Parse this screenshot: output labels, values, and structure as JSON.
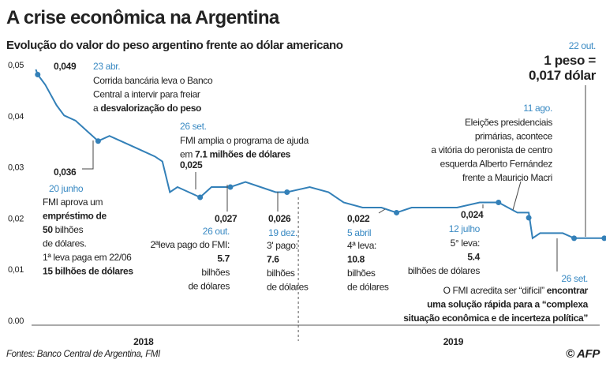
{
  "chart_data": {
    "type": "line",
    "title": "A crise econômica na Argentina",
    "subtitle": "Evolução do valor do peso argentino frente ao dólar americano",
    "source": "Fontes: Banco Central de Argentina, FMI",
    "credit": "© AFP",
    "color": "#3380b8",
    "x": [
      2018.305,
      2018.31,
      2018.33,
      2018.36,
      2018.38,
      2018.41,
      2018.44,
      2018.47,
      2018.5,
      2018.53,
      2018.56,
      2018.59,
      2018.62,
      2018.64,
      2018.66,
      2018.68,
      2018.71,
      2018.74,
      2018.77,
      2018.8,
      2018.82,
      2018.86,
      2018.9,
      2018.94,
      2018.97,
      2019.03,
      2019.08,
      2019.12,
      2019.17,
      2019.22,
      2019.26,
      2019.3,
      2019.35,
      2019.42,
      2019.48,
      2019.53,
      2019.58,
      2019.61,
      2019.62,
      2019.64,
      2019.7,
      2019.73,
      2019.78,
      2019.81
    ],
    "values": [
      0.05,
      0.049,
      0.047,
      0.043,
      0.041,
      0.04,
      0.038,
      0.036,
      0.037,
      0.036,
      0.035,
      0.034,
      0.033,
      0.032,
      0.026,
      0.027,
      0.026,
      0.025,
      0.027,
      0.027,
      0.027,
      0.028,
      0.027,
      0.026,
      0.026,
      0.027,
      0.026,
      0.024,
      0.023,
      0.023,
      0.022,
      0.023,
      0.023,
      0.023,
      0.024,
      0.024,
      0.022,
      0.022,
      0.017,
      0.018,
      0.018,
      0.017,
      0.017,
      0.017
    ],
    "xlim": [
      2018.3,
      2019.85
    ],
    "xticks": [
      {
        "value": 2018.59,
        "label": "2018"
      },
      {
        "value": 2019.41,
        "label": "2019"
      }
    ],
    "dividers": [
      2019
    ],
    "ylim": [
      0,
      0.05
    ],
    "yticks": [
      {
        "value": 0,
        "label": "0.00"
      },
      {
        "value": 0.01,
        "label": "0,01"
      },
      {
        "value": 0.02,
        "label": "0,02"
      },
      {
        "value": 0.03,
        "label": "0,03"
      },
      {
        "value": 0.04,
        "label": "0,04"
      },
      {
        "value": 0.05,
        "label": "0,05"
      }
    ],
    "grid": false,
    "annotations": [
      {
        "date": "23 abr.",
        "x": 2018.31,
        "y": 0.049,
        "value_label": "0,049",
        "lines": [
          "Corrida bancária leva o Banco",
          "Central a intervir para freiar",
          [
            "a ",
            {
              "bold": "desvalorização do peso"
            }
          ]
        ]
      },
      {
        "date": "20 junho",
        "x": 2018.47,
        "y": 0.036,
        "value_label": "0,036",
        "lines": [
          "FMI aprova um",
          [
            {
              "bold": "empréstimo de"
            }
          ],
          [
            {
              "bold": "50"
            },
            " bilhões"
          ],
          "de dólares.",
          "1ª leva paga em 22/06",
          [
            {
              "bold": "15 bilhões de dólares"
            }
          ]
        ]
      },
      {
        "date": "26 set.",
        "x": 2018.74,
        "y": 0.025,
        "value_label": "0,025",
        "lines": [
          "FMI amplia o programa de ajuda",
          [
            "em ",
            {
              "bold": "7.1 milhões de dólares"
            }
          ]
        ]
      },
      {
        "date": "26 out.",
        "x": 2018.82,
        "y": 0.027,
        "value_label": "0,027",
        "lines": [
          "2ªleva pago do FMI:",
          [
            {
              "bold": "5.7"
            }
          ],
          "bilhões",
          "de dólares"
        ]
      },
      {
        "date": "19 dez.",
        "x": 2018.97,
        "y": 0.026,
        "value_label": "0,026",
        "lines": [
          "3' pago:",
          [
            {
              "bold": "7.6"
            }
          ],
          "bilhões",
          "de dólares"
        ]
      },
      {
        "date": "5 abril",
        "x": 2019.26,
        "y": 0.022,
        "value_label": "0,022",
        "lines": [
          "4ª leva:",
          [
            {
              "bold": "10.8"
            }
          ],
          "bilhões",
          "de dólares"
        ]
      },
      {
        "date": "12 julho",
        "x": 2019.53,
        "y": 0.024,
        "value_label": "0,024",
        "lines": [
          "5° leva:",
          [
            {
              "bold": "5.4"
            }
          ],
          "bilhões de dólares"
        ]
      },
      {
        "date": "11 ago.",
        "x": 2019.61,
        "y": 0.021,
        "lines": [
          "Eleições presidenciais",
          "primárias, acontece",
          "a vitória do peronista de centro",
          "esquerda Alberto Fernández",
          "frente a Mauricio Macri"
        ]
      },
      {
        "date": "26 set.",
        "x": 2019.73,
        "y": 0.017,
        "lines": [
          [
            "O FMI acredita ser “difícil” ",
            {
              "bold": "encontrar"
            }
          ],
          [
            {
              "bold": "uma solução rápida para a “complexa"
            }
          ],
          [
            {
              "bold": "situação econômica e de incerteza política”"
            }
          ]
        ]
      },
      {
        "date": "22 out.",
        "x": 2019.81,
        "y": 0.017,
        "lines": [
          [
            {
              "bold": "1 peso ="
            }
          ],
          [
            {
              "bold": "0,017 dólar"
            }
          ]
        ]
      }
    ]
  }
}
